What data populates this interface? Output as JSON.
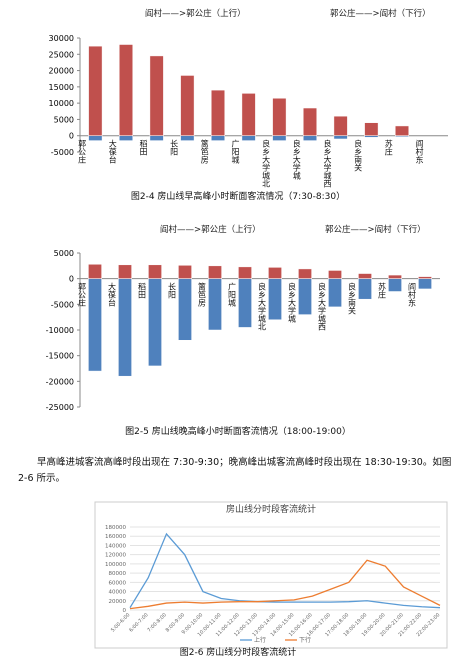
{
  "chart_data": [
    {
      "type": "bar",
      "caption": "图2-4 房山线早高峰小时断面客流情况（7:30-8:30）",
      "categories": [
        "郭公庄",
        "大葆台",
        "稻田",
        "长阳",
        "篱笆房",
        "广阳城",
        "良乡大学城北",
        "良乡大学城",
        "良乡大学城西",
        "良乡南关",
        "苏庄",
        "阎村东"
      ],
      "series": [
        {
          "name": "阎村——>郭公庄（上行）",
          "color": "#c0504d",
          "values": [
            27500,
            28000,
            24500,
            18500,
            14000,
            13000,
            11500,
            8500,
            6000,
            4000,
            3000,
            0
          ]
        },
        {
          "name": "郭公庄——>阎村（下行）",
          "color": "#4f81bd",
          "values": [
            -1500,
            -1500,
            -1500,
            -1500,
            -1500,
            -1500,
            -1500,
            -1500,
            -1000,
            -500,
            -300,
            0
          ]
        }
      ],
      "ylim": [
        -5000,
        30000
      ],
      "yticks": [
        -5000,
        0,
        5000,
        10000,
        15000,
        20000,
        25000,
        30000
      ]
    },
    {
      "type": "bar",
      "caption": "图2-5 房山线晚高峰小时断面客流情况（18:00-19:00）",
      "categories": [
        "郭公庄",
        "大葆台",
        "稻田",
        "长阳",
        "篱笆房",
        "广阳城",
        "良乡大学城北",
        "良乡大学城",
        "良乡大学城西",
        "良乡南关",
        "苏庄",
        "阎村东"
      ],
      "series": [
        {
          "name": "阎村——>郭公庄（上行）",
          "color": "#c0504d",
          "values": [
            2800,
            2700,
            2700,
            2600,
            2500,
            2300,
            2200,
            1900,
            1600,
            1000,
            700,
            400
          ]
        },
        {
          "name": "郭公庄——>阎村（下行）",
          "color": "#4f81bd",
          "values": [
            -18000,
            -19000,
            -17000,
            -12000,
            -10000,
            -9500,
            -8000,
            -7000,
            -5500,
            -4000,
            -2500,
            -2000
          ]
        }
      ],
      "ylim": [
        -25000,
        5000
      ],
      "yticks": [
        -25000,
        -20000,
        -15000,
        -10000,
        -5000,
        0,
        5000
      ]
    },
    {
      "type": "line",
      "title": "房山线分时段客流统计",
      "caption": "图2-6 房山线分时段客流统计",
      "categories": [
        "5:00-6:00",
        "6:00-7:00",
        "7:00-8:00",
        "8:00-9:00",
        "9:00-10:00",
        "10:00-11:00",
        "11:00-12:00",
        "12:00-13:00",
        "13:00-14:00",
        "14:00-15:00",
        "15:00-16:00",
        "16:00-17:00",
        "17:00-18:00",
        "18:00-19:00",
        "19:00-20:00",
        "20:00-21:00",
        "21:00-22:00",
        "22:00-23:00"
      ],
      "series": [
        {
          "name": "上行",
          "color": "#5b9bd5",
          "values": [
            5000,
            70000,
            165000,
            120000,
            40000,
            25000,
            20000,
            18000,
            17000,
            17000,
            17000,
            17000,
            18000,
            20000,
            15000,
            10000,
            7000,
            5000
          ]
        },
        {
          "name": "下行",
          "color": "#ed7d31",
          "values": [
            3000,
            8000,
            15000,
            17000,
            15000,
            17000,
            18000,
            18000,
            20000,
            22000,
            30000,
            45000,
            60000,
            108000,
            95000,
            50000,
            30000,
            10000
          ]
        }
      ],
      "ylim": [
        0,
        180000
      ],
      "yticks": [
        0,
        20000,
        40000,
        60000,
        80000,
        100000,
        120000,
        140000,
        160000,
        180000
      ]
    }
  ],
  "paragraph": "早高峰进城客流高峰时段出现在 7:30-9:30；晚高峰出城客流高峰时段出现在 18:30-19:30。如图 2-6 所示。"
}
